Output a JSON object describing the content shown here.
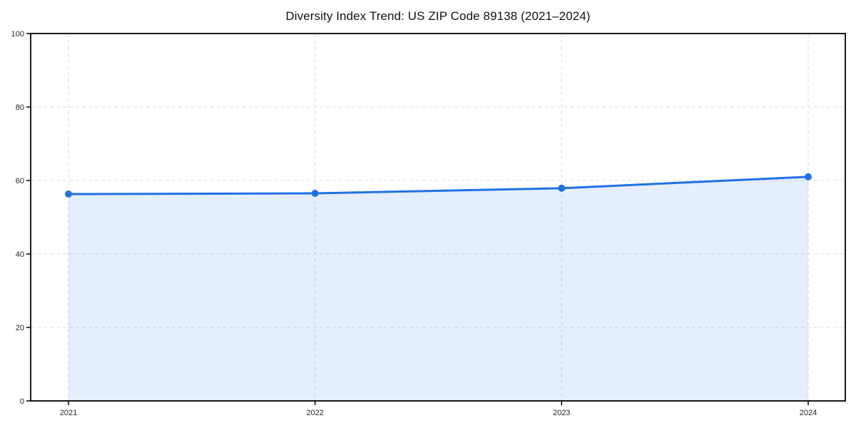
{
  "chart_data": {
    "type": "area",
    "title": "Diversity Index Trend: US ZIP Code 89138 (2021–2024)",
    "categories": [
      "2021",
      "2022",
      "2023",
      "2024"
    ],
    "series": [
      {
        "name": "Diversity Index",
        "values": [
          56.3,
          56.5,
          57.9,
          61.0
        ]
      }
    ],
    "xlabel": "",
    "ylabel": "",
    "ylim": [
      0,
      100
    ],
    "yticks": [
      0,
      20,
      40,
      60,
      80,
      100
    ],
    "grid": true,
    "grid_style": "dashed",
    "legend": false,
    "colors": {
      "line": "#2171e3",
      "marker": "#2171e3",
      "fill": "rgba(33, 113, 227, 0.12)",
      "grid": "#dcdcdc",
      "axis": "#000000",
      "tick_label": "#262626",
      "title": "#111111"
    }
  }
}
